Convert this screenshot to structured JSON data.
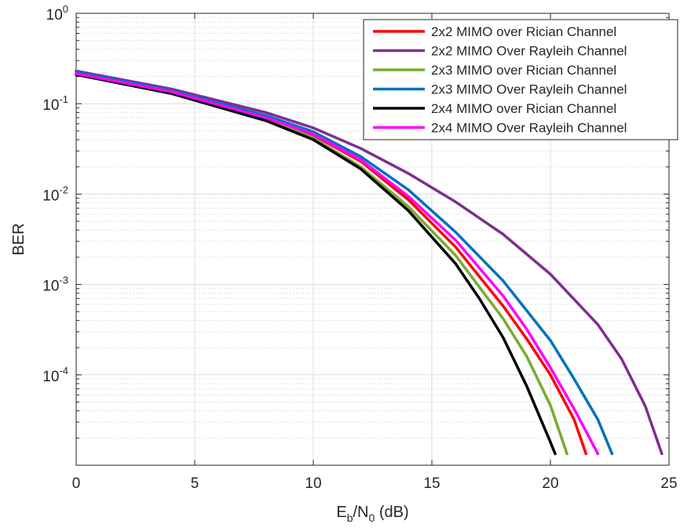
{
  "chart_data": {
    "type": "line",
    "xlabel": {
      "base": "E",
      "sub1": "b",
      "mid": "/N",
      "sub2": "0",
      "tail": " (dB)"
    },
    "ylabel": "BER",
    "x_scale": "linear",
    "y_scale": "log",
    "xlim": [
      0,
      25
    ],
    "ylim": [
      1e-05,
      1
    ],
    "x_ticks": [
      0,
      5,
      10,
      15,
      20,
      25
    ],
    "x_tick_labels": [
      "0",
      "5",
      "10",
      "15",
      "20",
      "25"
    ],
    "y_ticks": [
      0.0001,
      0.001,
      0.01,
      0.1,
      1
    ],
    "y_tick_labels": [
      {
        "base": "10",
        "exp": "-4"
      },
      {
        "base": "10",
        "exp": "-3"
      },
      {
        "base": "10",
        "exp": "-2"
      },
      {
        "base": "10",
        "exp": "-1"
      },
      {
        "base": "10",
        "exp": "0"
      }
    ],
    "grid": true,
    "minor_grid": true,
    "legend_position": "top-right",
    "series": [
      {
        "name": "2x2 MIMO over Rician Channel",
        "color": "#ff0000",
        "x": [
          0,
          4,
          8,
          10,
          12,
          14,
          16,
          18,
          19,
          20,
          21,
          21.5
        ],
        "y": [
          0.215,
          0.135,
          0.07,
          0.045,
          0.023,
          0.0087,
          0.0026,
          0.00058,
          0.00025,
          0.0001,
          3.2e-05,
          1.34e-05
        ]
      },
      {
        "name": "2x2 MIMO Over Rayleih Channel",
        "color": "#7e2f8e",
        "x": [
          0,
          4,
          8,
          10,
          12,
          14,
          16,
          18,
          20,
          22,
          23,
          24,
          24.7
        ],
        "y": [
          0.23,
          0.146,
          0.08,
          0.054,
          0.032,
          0.017,
          0.0082,
          0.0036,
          0.0013,
          0.00036,
          0.00015,
          4.5e-05,
          1.34e-05
        ]
      },
      {
        "name": "2x3 MIMO over Rician Channel",
        "color": "#77ac30",
        "x": [
          0,
          4,
          8,
          10,
          12,
          14,
          16,
          18,
          19,
          20,
          20.7
        ],
        "y": [
          0.215,
          0.133,
          0.067,
          0.042,
          0.02,
          0.0073,
          0.0021,
          0.00042,
          0.00016,
          4.6e-05,
          1.34e-05
        ]
      },
      {
        "name": "2x3 MIMO Over Rayleih Channel",
        "color": "#0072bd",
        "x": [
          0,
          4,
          8,
          10,
          12,
          14,
          16,
          18,
          20,
          21,
          22,
          22.6
        ],
        "y": [
          0.225,
          0.14,
          0.074,
          0.049,
          0.026,
          0.0112,
          0.0038,
          0.0011,
          0.00024,
          9e-05,
          3.2e-05,
          1.34e-05
        ]
      },
      {
        "name": "2x4 MIMO over Rician Channel",
        "color": "#000000",
        "x": [
          0,
          4,
          8,
          10,
          12,
          14,
          16,
          17,
          18,
          19,
          20,
          20.2
        ],
        "y": [
          0.21,
          0.13,
          0.065,
          0.04,
          0.019,
          0.0066,
          0.0017,
          0.0007,
          0.00026,
          7.5e-05,
          1.8e-05,
          1.34e-05
        ]
      },
      {
        "name": "2x4 MIMO Over Rayleih Channel",
        "color": "#ff00ff",
        "x": [
          0,
          4,
          8,
          10,
          12,
          14,
          16,
          18,
          19,
          20,
          21,
          22
        ],
        "y": [
          0.215,
          0.136,
          0.07,
          0.046,
          0.024,
          0.0095,
          0.0031,
          0.00075,
          0.00032,
          0.00012,
          4.2e-05,
          1.34e-05
        ]
      }
    ]
  }
}
